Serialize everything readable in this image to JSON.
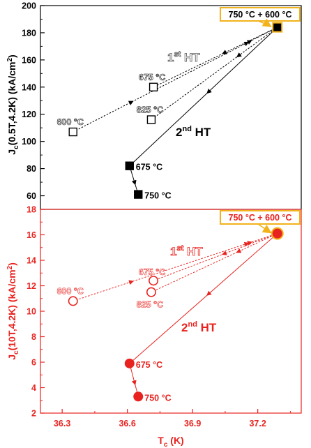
{
  "colors": {
    "top": "#000000",
    "bottom": "#e8231f",
    "highlight": "#f2b21b"
  },
  "chart_data": [
    {
      "type": "scatter",
      "panel": "top",
      "ylabel_main": "J",
      "ylabel_sub": "c",
      "ylabel_rest": "(0.5T,4.2K) (kA/cm",
      "ylabel_sup": "2",
      "ylabel_end": ")",
      "ylim": [
        50,
        200
      ],
      "yticks": [
        "60",
        "80",
        "100",
        "120",
        "140",
        "160",
        "180",
        "200"
      ],
      "xlim": [
        36.2,
        37.4
      ],
      "series": [
        {
          "marker": "open-square",
          "points": [
            {
              "x": 36.35,
              "y": 107,
              "label": "600 °C"
            },
            {
              "x": 36.72,
              "y": 140,
              "label": "675 °C"
            },
            {
              "x": 36.71,
              "y": 116,
              "label": "825 °C"
            }
          ]
        },
        {
          "marker": "filled-square",
          "points": [
            {
              "x": 36.61,
              "y": 82,
              "label": "675 °C"
            },
            {
              "x": 36.65,
              "y": 61,
              "label": "750 °C"
            },
            {
              "x": 37.29,
              "y": 184,
              "label": "750 °C + 600 °C"
            }
          ]
        }
      ],
      "annotations": {
        "ht1_main": "1",
        "ht1_sup": "st",
        "ht1_end": " HT",
        "ht2_main": "2",
        "ht2_sup": "nd",
        "ht2_end": " HT"
      }
    },
    {
      "type": "scatter",
      "panel": "bottom",
      "ylabel_main": "J",
      "ylabel_sub": "c",
      "ylabel_rest": "(10T,4.2K) (kA/cm",
      "ylabel_sup": "2",
      "ylabel_end": ")",
      "ylim": [
        2,
        18
      ],
      "yticks": [
        "2",
        "4",
        "6",
        "8",
        "10",
        "12",
        "14",
        "16",
        "18"
      ],
      "xlim": [
        36.2,
        37.4
      ],
      "xticks": [
        "36.3",
        "36.6",
        "36.9",
        "37.2"
      ],
      "xlabel_main": "T",
      "xlabel_sub": "c",
      "xlabel_end": " (K)",
      "series": [
        {
          "marker": "open-circle",
          "points": [
            {
              "x": 36.35,
              "y": 10.8,
              "label": "600 °C"
            },
            {
              "x": 36.72,
              "y": 12.4,
              "label": "675 °C"
            },
            {
              "x": 36.71,
              "y": 11.5,
              "label": "825 °C"
            }
          ]
        },
        {
          "marker": "filled-circle",
          "points": [
            {
              "x": 36.61,
              "y": 5.9,
              "label": "675 °C"
            },
            {
              "x": 36.65,
              "y": 3.3,
              "label": "750 °C"
            },
            {
              "x": 37.29,
              "y": 16.1,
              "label": "750 °C + 600 °C"
            }
          ]
        }
      ],
      "annotations": {
        "ht1_main": "1",
        "ht1_sup": "st",
        "ht1_end": " HT",
        "ht2_main": "2",
        "ht2_sup": "nd",
        "ht2_end": " HT"
      }
    }
  ]
}
